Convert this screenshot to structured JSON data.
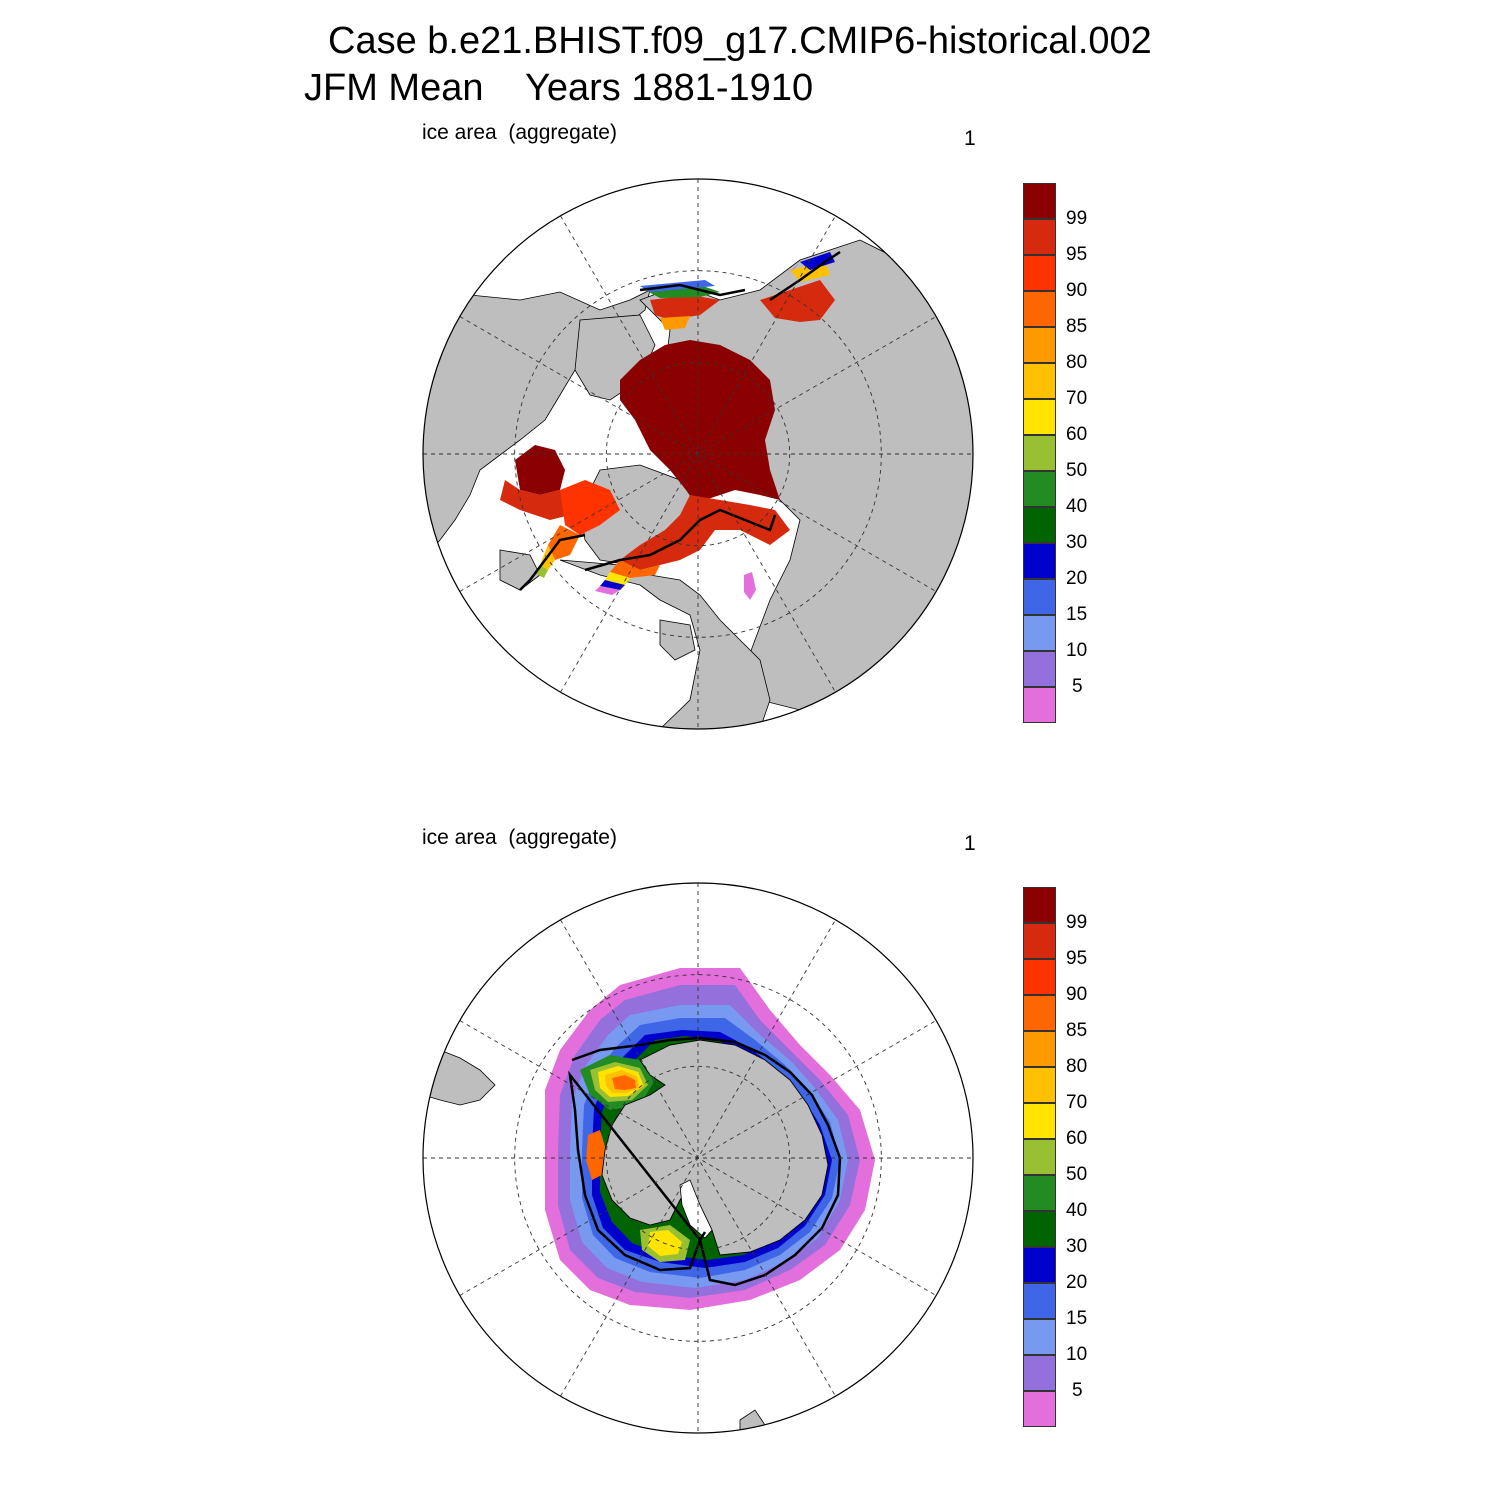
{
  "title": {
    "line1": "Case b.e21.BHIST.f09_g17.CMIP6-historical.002",
    "line2": "JFM Mean    Years 1881-1910"
  },
  "panels": [
    {
      "id": "north",
      "hemisphere": "north",
      "left_label": "ice area  (aggregate)",
      "right_label": "1"
    },
    {
      "id": "south",
      "hemisphere": "south",
      "left_label": "ice area  (aggregate)",
      "right_label": "1"
    }
  ],
  "colorbar": {
    "labels": [
      "99",
      "95",
      "90",
      "85",
      "80",
      "70",
      "60",
      "50",
      "40",
      "30",
      "20",
      "15",
      "10",
      "5"
    ],
    "colors": [
      "#8b0000",
      "#d62a0f",
      "#ff3300",
      "#ff6600",
      "#ff9900",
      "#ffc000",
      "#ffe400",
      "#99bf33",
      "#228b22",
      "#006400",
      "#0000cd",
      "#3f66e6",
      "#7799f0",
      "#9370db",
      "#e36fdc"
    ]
  },
  "palette": {
    "land": "#bebebe",
    "ocean": "#ffffff",
    "grid": "#333333",
    "contour": "#000000"
  }
}
